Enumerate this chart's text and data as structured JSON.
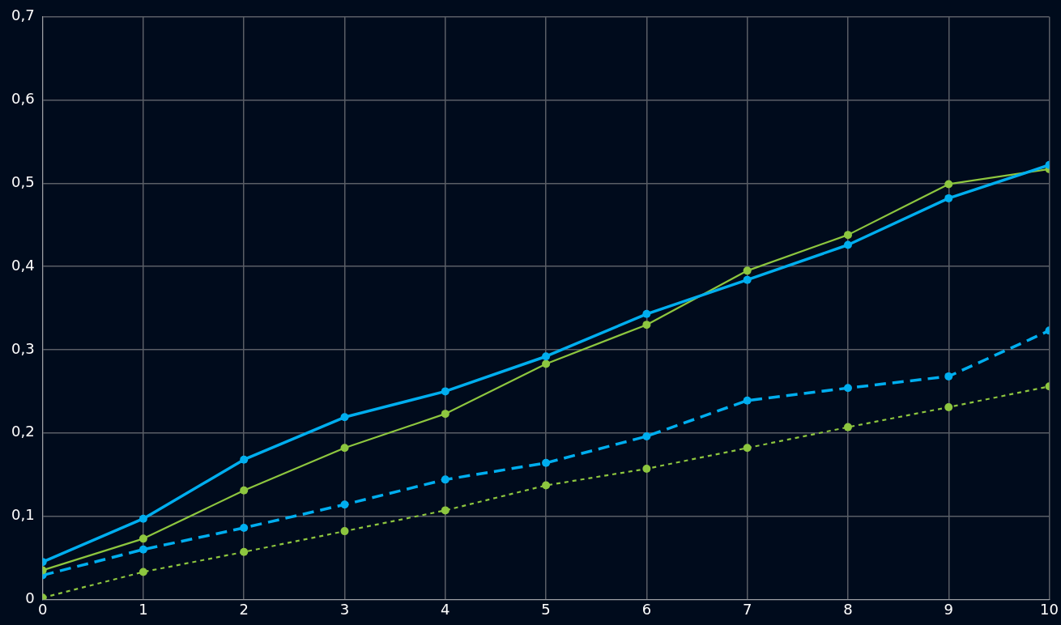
{
  "chart_data": {
    "type": "line",
    "x": [
      0,
      1,
      2,
      3,
      4,
      5,
      6,
      7,
      8,
      9,
      10
    ],
    "series": [
      {
        "color": "#00aeef",
        "line_style": "solid",
        "values": [
          0.045,
          0.097,
          0.168,
          0.219,
          0.25,
          0.292,
          0.343,
          0.384,
          0.426,
          0.482,
          0.522
        ]
      },
      {
        "color": "#8dc63f",
        "line_style": "solid",
        "values": [
          0.035,
          0.073,
          0.131,
          0.182,
          0.223,
          0.283,
          0.33,
          0.395,
          0.438,
          0.499,
          0.517
        ]
      },
      {
        "color": "#00aeef",
        "line_style": "dashed",
        "values": [
          0.029,
          0.06,
          0.086,
          0.114,
          0.144,
          0.164,
          0.196,
          0.239,
          0.254,
          0.268,
          0.323
        ]
      },
      {
        "color": "#8dc63f",
        "line_style": "dotted",
        "values": [
          0.002,
          0.033,
          0.057,
          0.082,
          0.107,
          0.137,
          0.157,
          0.182,
          0.207,
          0.231,
          0.256
        ]
      }
    ],
    "xlim": [
      0,
      10
    ],
    "xticks": [
      0,
      1,
      2,
      3,
      4,
      5,
      6,
      7,
      8,
      9,
      10
    ],
    "ylim": [
      0,
      0.7
    ],
    "yticks": [
      0,
      {
        "value": 0.1,
        "label": "0,1"
      },
      {
        "value": 0.2,
        "label": "0,2"
      },
      {
        "value": 0.3,
        "label": "0,3"
      },
      {
        "value": 0.4,
        "label": "0,4"
      },
      {
        "value": 0.5,
        "label": "0,5"
      },
      {
        "value": 0.6,
        "label": "0,6"
      },
      {
        "value": 0.7,
        "label": "0,7"
      }
    ],
    "grid": true,
    "legend": false,
    "marker": "circle"
  }
}
